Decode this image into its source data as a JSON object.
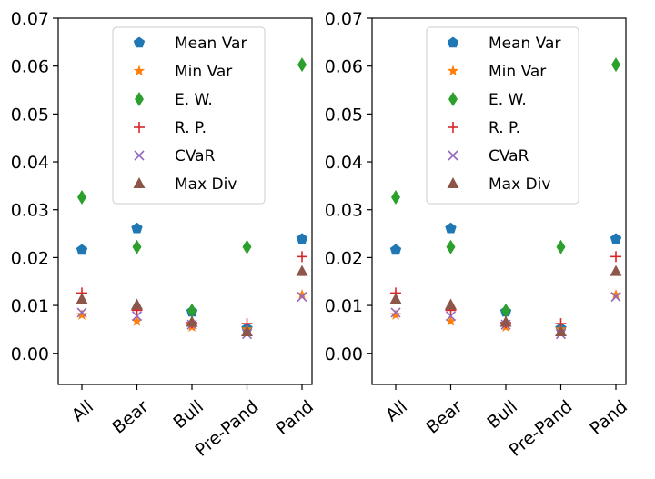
{
  "chart_data": [
    {
      "type": "scatter",
      "categories": [
        "All",
        "Bear",
        "Bull",
        "Pre-Pand",
        "Pand"
      ],
      "ylim": [
        -0.0065,
        0.07
      ],
      "yticks": [
        "0.00",
        "0.01",
        "0.02",
        "0.03",
        "0.04",
        "0.05",
        "0.06",
        "0.07"
      ],
      "ytick_values": [
        0.0,
        0.01,
        0.02,
        0.03,
        0.04,
        0.05,
        0.06,
        0.07
      ],
      "grid": false,
      "legend_position": "top-center",
      "series": [
        {
          "name": "Mean Var",
          "marker": "pentagon",
          "color": "#1f77b4",
          "values": [
            0.0216,
            0.0261,
            0.0087,
            0.0052,
            0.0239
          ]
        },
        {
          "name": "Min Var",
          "marker": "star",
          "color": "#ff7f0e",
          "values": [
            0.008,
            0.0067,
            0.0055,
            0.005,
            0.0122
          ]
        },
        {
          "name": "E. W.",
          "marker": "thin_diamond",
          "color": "#2ca02c",
          "values": [
            0.0326,
            0.0222,
            0.0089,
            0.0222,
            0.0603
          ]
        },
        {
          "name": "R. P.",
          "marker": "plus",
          "color": "#d62728",
          "values": [
            0.0126,
            0.009,
            0.0064,
            0.0062,
            0.0202
          ]
        },
        {
          "name": "CVaR",
          "marker": "x",
          "color": "#9467bd",
          "values": [
            0.0085,
            0.0078,
            0.006,
            0.004,
            0.0118
          ]
        },
        {
          "name": "Max Div",
          "marker": "triangle",
          "color": "#8c564b",
          "values": [
            0.0113,
            0.0101,
            0.0065,
            0.0045,
            0.0171
          ]
        }
      ]
    },
    {
      "type": "scatter",
      "categories": [
        "All",
        "Bear",
        "Bull",
        "Pre-Pand",
        "Pand"
      ],
      "ylim": [
        -0.0065,
        0.07
      ],
      "yticks": [
        "0.00",
        "0.01",
        "0.02",
        "0.03",
        "0.04",
        "0.05",
        "0.06",
        "0.07"
      ],
      "ytick_values": [
        0.0,
        0.01,
        0.02,
        0.03,
        0.04,
        0.05,
        0.06,
        0.07
      ],
      "grid": false,
      "legend_position": "top-center",
      "series": [
        {
          "name": "Mean Var",
          "marker": "pentagon",
          "color": "#1f77b4",
          "values": [
            0.0216,
            0.0261,
            0.0087,
            0.0052,
            0.0239
          ]
        },
        {
          "name": "Min Var",
          "marker": "star",
          "color": "#ff7f0e",
          "values": [
            0.008,
            0.0067,
            0.0055,
            0.005,
            0.0122
          ]
        },
        {
          "name": "E. W.",
          "marker": "thin_diamond",
          "color": "#2ca02c",
          "values": [
            0.0326,
            0.0222,
            0.0089,
            0.0222,
            0.0603
          ]
        },
        {
          "name": "R. P.",
          "marker": "plus",
          "color": "#d62728",
          "values": [
            0.0126,
            0.009,
            0.0064,
            0.0062,
            0.0202
          ]
        },
        {
          "name": "CVaR",
          "marker": "x",
          "color": "#9467bd",
          "values": [
            0.0085,
            0.0078,
            0.006,
            0.004,
            0.0118
          ]
        },
        {
          "name": "Max Div",
          "marker": "triangle",
          "color": "#8c564b",
          "values": [
            0.0113,
            0.0101,
            0.0065,
            0.0045,
            0.0171
          ]
        }
      ]
    }
  ]
}
